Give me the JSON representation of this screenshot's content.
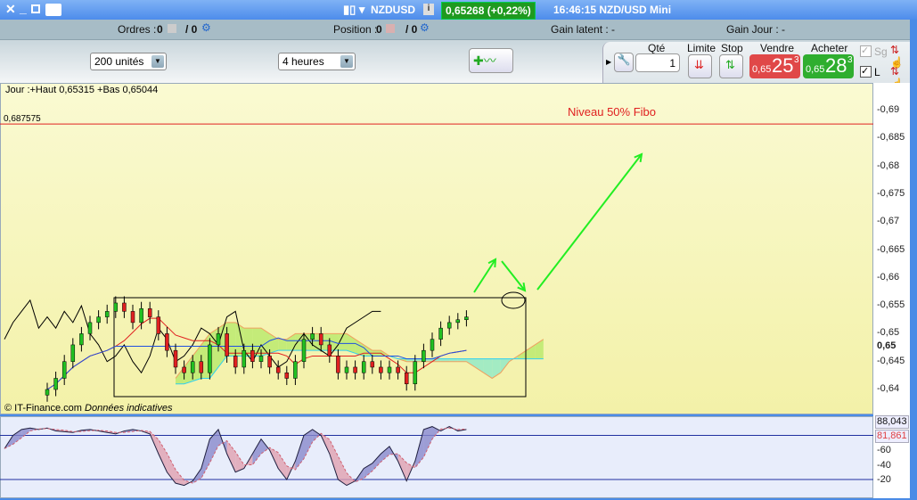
{
  "titlebar": {
    "symbol": "NZDUSD",
    "price_change": "0,65268 (+0,22%)",
    "time_info": "16:46:15 NZD/USD Mini"
  },
  "infobar": {
    "orders_label": "Ordres :",
    "orders_count": "0",
    "orders_alt": "/ 0",
    "position_label": "Position :",
    "position_count": "0",
    "position_alt": "/ 0",
    "gain_latent": "Gain latent :  -",
    "gain_jour": "Gain Jour :  -"
  },
  "toolbar": {
    "units": "200 unités",
    "timeframe": "4 heures"
  },
  "order_panel": {
    "qty_label": "Qté",
    "qty_value": "1",
    "limit_label": "Limite",
    "stop_label": "Stop",
    "sell_label": "Vendre",
    "buy_label": "Acheter",
    "sell_prefix": "0,65",
    "sell_big": "25",
    "sell_sup": "3",
    "buy_prefix": "0,65",
    "buy_big": "28",
    "buy_sup": "3",
    "sg_label": "Sg",
    "l_label": "L",
    "sg_checked": true,
    "l_checked": true,
    "sell_color": "#e04848",
    "buy_color": "#2fae2f"
  },
  "chart": {
    "day_info": "Jour :+Haut 0,65315 +Bas 0,65044",
    "fibo_value": "0,687575",
    "fibo_label": "Niveau 50% Fibo",
    "credit": "© IT-Finance.com",
    "credit_note": "Données indicatives",
    "current_price": "0,65",
    "price_ticks": [
      "0,69",
      "0,685",
      "0,68",
      "0,675",
      "0,67",
      "0,665",
      "0,66",
      "0,655",
      "0,65",
      "0,645",
      "0,64"
    ],
    "osc_ticks": [
      "60",
      "40",
      "20"
    ],
    "osc_k_value": "88,043",
    "osc_d_value": "81,861"
  },
  "chart_data": {
    "type": "candlestick",
    "ylim": [
      0.64,
      0.69
    ],
    "fibo_level": 0.687575,
    "candle_start_index": 5,
    "closes": [
      0.64,
      0.642,
      0.645,
      0.648,
      0.65,
      0.652,
      0.653,
      0.654,
      0.6555,
      0.654,
      0.652,
      0.6545,
      0.653,
      0.65,
      0.647,
      0.644,
      0.643,
      0.645,
      0.643,
      0.648,
      0.65,
      0.646,
      0.644,
      0.647,
      0.645,
      0.646,
      0.644,
      0.643,
      0.642,
      0.645,
      0.649,
      0.65,
      0.648,
      0.646,
      0.643,
      0.644,
      0.643,
      0.645,
      0.644,
      0.643,
      0.644,
      0.643,
      0.641,
      0.645,
      0.647,
      0.649,
      0.651,
      0.652,
      0.6525,
      0.653
    ],
    "lagging_span": [
      0.649,
      0.652,
      0.654,
      0.656,
      0.651,
      0.653,
      0.651,
      0.654,
      0.652,
      0.655,
      0.65,
      0.648,
      0.645,
      0.646,
      0.648,
      0.645,
      0.643,
      0.646,
      0.651,
      0.649,
      0.645,
      0.646,
      0.648,
      0.651,
      0.65,
      0.648,
      0.653,
      0.654,
      0.647,
      0.645,
      0.648,
      0.646,
      0.644,
      0.645,
      0.648,
      0.65,
      0.648,
      0.647,
      0.646,
      0.648,
      0.651,
      0.652,
      0.653,
      0.654,
      0.654
    ],
    "cloud_start_index": 20,
    "span_a": [
      0.642,
      0.644,
      0.646,
      0.648,
      0.65,
      0.651,
      0.652,
      0.652,
      0.651,
      0.651,
      0.651,
      0.65,
      0.649,
      0.649,
      0.65,
      0.65,
      0.65,
      0.65,
      0.65,
      0.65,
      0.65,
      0.649,
      0.648,
      0.647,
      0.647,
      0.646,
      0.6455,
      0.645,
      0.645,
      0.645,
      0.645,
      0.645,
      0.645,
      0.645,
      0.645,
      0.644,
      0.643,
      0.642,
      0.643,
      0.645,
      0.646,
      0.647,
      0.648,
      0.649
    ],
    "span_b": [
      0.641,
      0.641,
      0.6415,
      0.642,
      0.642,
      0.644,
      0.646,
      0.646,
      0.646,
      0.646,
      0.646,
      0.6465,
      0.647,
      0.647,
      0.647,
      0.647,
      0.647,
      0.647,
      0.647,
      0.647,
      0.647,
      0.6465,
      0.646,
      0.646,
      0.646,
      0.646,
      0.6455,
      0.6455,
      0.6455,
      0.6455,
      0.6455,
      0.6455,
      0.6455,
      0.6455,
      0.6455,
      0.6455,
      0.6455,
      0.6455,
      0.6455,
      0.6455,
      0.6455,
      0.6455,
      0.6455,
      0.6455
    ],
    "stoch_k": [
      62,
      80,
      88,
      90,
      88,
      90,
      86,
      85,
      84,
      87,
      88,
      86,
      84,
      82,
      86,
      88,
      86,
      82,
      55,
      30,
      15,
      12,
      18,
      35,
      75,
      88,
      55,
      30,
      35,
      55,
      75,
      60,
      35,
      20,
      45,
      80,
      88,
      80,
      55,
      20,
      12,
      18,
      35,
      42,
      55,
      65,
      45,
      18,
      45,
      88,
      92,
      86,
      92,
      86,
      88
    ],
    "osc_levels": [
      80,
      20
    ]
  }
}
